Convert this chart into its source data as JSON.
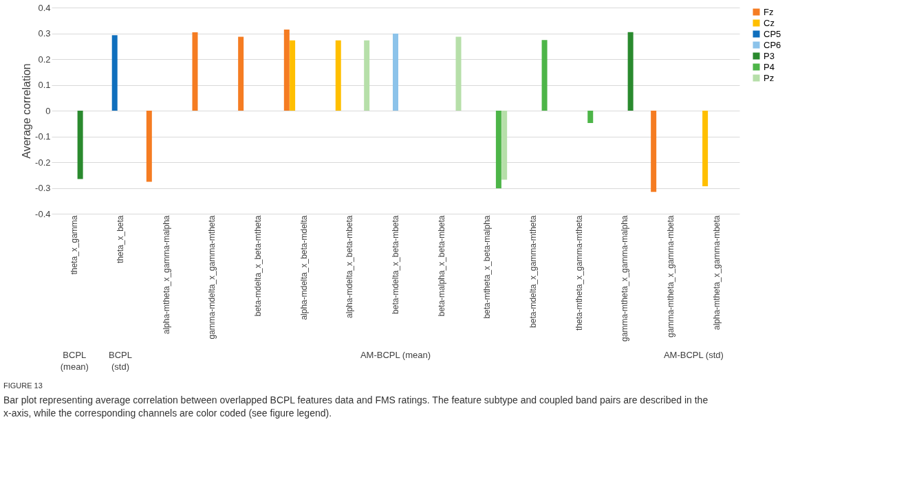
{
  "chart_data": {
    "type": "bar",
    "ylabel": "Average correlation",
    "categories": [
      "theta_x_gamma",
      "theta_x_beta",
      "alpha-mtheta_x_gamma-malpha",
      "gamma-mdelta_x_gamma-mtheta",
      "beta-mdelta_x_beta-mtheta",
      "alpha-mdelta_x_beta-mdelta",
      "alpha-mdelta_x_beta-mbeta",
      "beta-mdelta_x_beta-mbeta",
      "beta-malpha_x_beta-mbeta",
      "beta-mtheta_x_beta-malpha",
      "beta-mdelta_x_gamma-mtheta",
      "theta-mtheta_x_gamma-mtheta",
      "gamma-mtheta_x_gamma-malpha",
      "gamma-mtheta_x_gamma-mbeta",
      "alpha-mtheta_x_gamma-mbeta"
    ],
    "series": [
      {
        "name": "Fz",
        "color": "#f57c22",
        "values": [
          null,
          null,
          -0.276,
          0.304,
          0.287,
          0.315,
          null,
          null,
          null,
          null,
          null,
          null,
          null,
          -0.315,
          null
        ]
      },
      {
        "name": "Cz",
        "color": "#ffbf00",
        "values": [
          null,
          null,
          null,
          null,
          null,
          0.273,
          0.273,
          null,
          null,
          null,
          null,
          null,
          null,
          null,
          -0.293
        ]
      },
      {
        "name": "CP5",
        "color": "#0f6fbd",
        "values": [
          null,
          0.293,
          null,
          null,
          null,
          null,
          null,
          null,
          null,
          null,
          null,
          null,
          null,
          null,
          null
        ]
      },
      {
        "name": "CP6",
        "color": "#8cc3ea",
        "values": [
          null,
          null,
          null,
          null,
          null,
          null,
          null,
          0.299,
          null,
          null,
          null,
          null,
          null,
          null,
          null
        ]
      },
      {
        "name": "P3",
        "color": "#2a8a2e",
        "values": [
          -0.265,
          null,
          null,
          null,
          null,
          null,
          null,
          null,
          null,
          null,
          null,
          null,
          0.305,
          null,
          null
        ]
      },
      {
        "name": "P4",
        "color": "#4db548",
        "values": [
          null,
          null,
          null,
          null,
          null,
          null,
          null,
          null,
          null,
          -0.301,
          0.274,
          -0.048,
          null,
          null,
          null
        ]
      },
      {
        "name": "Pz",
        "color": "#b6dfa9",
        "values": [
          null,
          null,
          null,
          null,
          null,
          null,
          0.273,
          null,
          0.287,
          -0.268,
          null,
          null,
          null,
          null,
          null
        ]
      }
    ],
    "ylim": [
      -0.4,
      0.4
    ],
    "yticks": [
      -0.4,
      -0.3,
      -0.2,
      -0.1,
      0,
      0.1,
      0.2,
      0.3,
      0.4
    ],
    "grid": "y",
    "legend": "right",
    "annotations": [
      "BCPL (mean)",
      "BCPL (std)",
      "AM-BCPL (mean)",
      "AM-BCPL (std)",
      "FIGURE 13",
      "Bar plot representing average correlation between overlapped BCPL features data and FMS ratings. The feature subtype and coupled band pairs are described in the x-axis, while the corresponding channels are color coded (see figure legend)."
    ]
  }
}
